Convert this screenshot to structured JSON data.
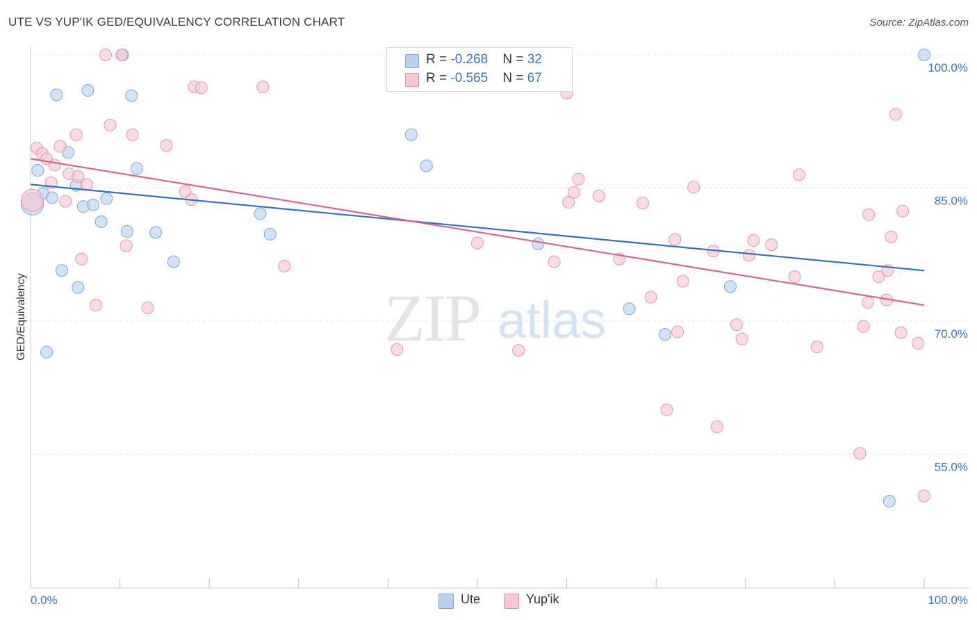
{
  "header": {
    "title": "UTE VS YUP'IK GED/EQUIVALENCY CORRELATION CHART",
    "source": "Source: ZipAtlas.com"
  },
  "legend": {
    "rows": [
      {
        "r_label": "R = ",
        "r_value": "-0.268",
        "n_label": "N = ",
        "n_value": "32",
        "color": "#b7d1f2",
        "border": "#7aa6e0"
      },
      {
        "r_label": "R = ",
        "r_value": "-0.565",
        "n_label": "N = ",
        "n_value": "67",
        "color": "#f9c6d4",
        "border": "#ee8fab"
      }
    ]
  },
  "bottom_legend": {
    "ute_label": "Ute",
    "yupik_label": "Yup'ik"
  },
  "watermark": {
    "zip": "ZIP",
    "atlas": "atlas"
  },
  "chart_data": {
    "type": "scatter",
    "title": "UTE VS YUP'IK GED/EQUIVALENCY CORRELATION CHART",
    "ylabel": "GED/Equivalency",
    "xlabel": "",
    "x_tick_labels": [
      "0.0%",
      "100.0%"
    ],
    "y_tick_labels": [
      "100.0%",
      "85.0%",
      "70.0%",
      "55.0%"
    ],
    "y_ticks": [
      100,
      85,
      70,
      55
    ],
    "xlim": [
      0,
      100
    ],
    "ylim": [
      40,
      102
    ],
    "grid": true,
    "colors": {
      "ute_fill": "#b7d1f2",
      "ute_stroke": "#7aa6e0",
      "ute_line": "#2f6fcf",
      "yupik_fill": "#f9c6d4",
      "yupik_stroke": "#ee8fab",
      "yupik_line": "#e0628c"
    },
    "series": [
      {
        "name": "Ute",
        "trend": [
          [
            0,
            85.4
          ],
          [
            100,
            75.7
          ]
        ],
        "points": [
          [
            0.8,
            87.0
          ],
          [
            1.4,
            84.4
          ],
          [
            1.8,
            66.5
          ],
          [
            2.4,
            83.9
          ],
          [
            2.9,
            95.5
          ],
          [
            3.5,
            75.7
          ],
          [
            4.2,
            89.0
          ],
          [
            5.1,
            85.3
          ],
          [
            5.3,
            73.8
          ],
          [
            5.9,
            82.9
          ],
          [
            6.4,
            96.0
          ],
          [
            7.0,
            83.1
          ],
          [
            7.9,
            81.2
          ],
          [
            8.5,
            83.8
          ],
          [
            10.3,
            100.0
          ],
          [
            10.8,
            80.1
          ],
          [
            11.3,
            95.4
          ],
          [
            11.9,
            87.2
          ],
          [
            14.0,
            80.0
          ],
          [
            16.0,
            76.7
          ],
          [
            25.7,
            82.1
          ],
          [
            26.8,
            79.8
          ],
          [
            42.6,
            91.0
          ],
          [
            44.3,
            87.5
          ],
          [
            52.3,
            100.0
          ],
          [
            56.8,
            78.7
          ],
          [
            67.0,
            71.4
          ],
          [
            71.0,
            68.5
          ],
          [
            78.3,
            73.9
          ],
          [
            96.1,
            49.7
          ],
          [
            100.0,
            100.0
          ],
          [
            0.2,
            83.2
          ]
        ]
      },
      {
        "name": "Yup'ik",
        "trend": [
          [
            0,
            88.3
          ],
          [
            100,
            71.8
          ]
        ],
        "points": [
          [
            0.7,
            89.5
          ],
          [
            1.3,
            88.9
          ],
          [
            1.8,
            88.3
          ],
          [
            2.3,
            85.6
          ],
          [
            2.7,
            87.6
          ],
          [
            3.3,
            89.7
          ],
          [
            3.9,
            83.5
          ],
          [
            4.3,
            86.6
          ],
          [
            5.1,
            91.0
          ],
          [
            5.3,
            86.3
          ],
          [
            5.7,
            77.0
          ],
          [
            6.3,
            85.4
          ],
          [
            7.3,
            71.8
          ],
          [
            8.4,
            100.0
          ],
          [
            8.9,
            92.1
          ],
          [
            10.2,
            100.0
          ],
          [
            10.7,
            78.5
          ],
          [
            11.4,
            91.0
          ],
          [
            13.1,
            71.5
          ],
          [
            15.2,
            89.8
          ],
          [
            17.3,
            84.6
          ],
          [
            18.0,
            83.7
          ],
          [
            18.3,
            96.4
          ],
          [
            19.1,
            96.3
          ],
          [
            26.0,
            96.4
          ],
          [
            28.4,
            76.2
          ],
          [
            41.0,
            66.8
          ],
          [
            50.0,
            78.8
          ],
          [
            54.6,
            66.7
          ],
          [
            58.6,
            76.7
          ],
          [
            60.0,
            95.7
          ],
          [
            60.2,
            83.4
          ],
          [
            60.8,
            84.5
          ],
          [
            61.3,
            86.0
          ],
          [
            63.6,
            84.1
          ],
          [
            65.9,
            77.0
          ],
          [
            68.5,
            83.3
          ],
          [
            69.4,
            72.7
          ],
          [
            71.2,
            60.0
          ],
          [
            72.1,
            79.2
          ],
          [
            72.4,
            68.8
          ],
          [
            73.0,
            74.5
          ],
          [
            74.2,
            85.1
          ],
          [
            76.4,
            77.9
          ],
          [
            76.8,
            58.1
          ],
          [
            79.0,
            69.6
          ],
          [
            79.6,
            68.0
          ],
          [
            80.4,
            77.4
          ],
          [
            80.9,
            79.1
          ],
          [
            82.9,
            78.6
          ],
          [
            85.5,
            75.0
          ],
          [
            86.0,
            86.5
          ],
          [
            88.0,
            67.1
          ],
          [
            92.8,
            55.1
          ],
          [
            93.2,
            69.4
          ],
          [
            93.7,
            72.1
          ],
          [
            93.8,
            82.0
          ],
          [
            94.9,
            75.0
          ],
          [
            95.8,
            72.4
          ],
          [
            95.9,
            75.7
          ],
          [
            96.3,
            79.5
          ],
          [
            96.8,
            93.3
          ],
          [
            97.4,
            68.7
          ],
          [
            97.6,
            82.4
          ],
          [
            99.3,
            67.5
          ],
          [
            100.0,
            50.3
          ],
          [
            0.2,
            83.6
          ]
        ]
      }
    ]
  }
}
